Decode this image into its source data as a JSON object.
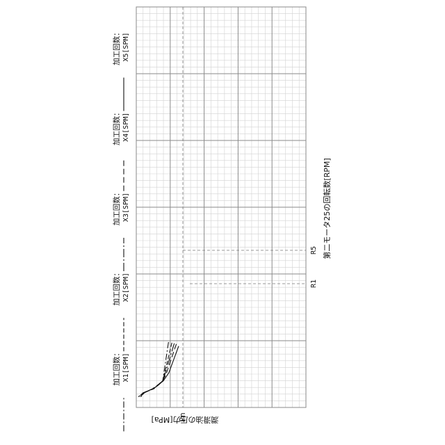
{
  "chart_data": {
    "type": "line",
    "orientation": "rotated-90-clockwise",
    "x_axis_label": "潤滑油の圧力[MPa]",
    "x_tick_label": "Pn",
    "y_axis_label": "第二モータ25の回転数[RPM]",
    "y_ref_labels": [
      "R5",
      "R1"
    ],
    "grid": true,
    "legend": [
      {
        "label": "加工回数：X1[SPM]",
        "dash": "9 3 2 3"
      },
      {
        "label": "加工回数：X2[SPM]",
        "dash": "6 3"
      },
      {
        "label": "加工回数：X3[SPM]",
        "dash": "12 3 2 3"
      },
      {
        "label": "加工回数：X4[SPM]",
        "dash": "8 4"
      },
      {
        "label": "加工回数：X5[SPM]",
        "dash": ""
      }
    ],
    "series": [
      {
        "values": [
          [
            0.98,
            0.95
          ],
          [
            0.47,
            0.8
          ],
          [
            0.4,
            0.78
          ],
          [
            0.34,
            0.66
          ],
          [
            0.28,
            0.5
          ],
          [
            0.22,
            0.22
          ],
          [
            0.16,
            0.1
          ]
        ]
      },
      {
        "values": [
          [
            0.97,
            1.05
          ],
          [
            0.48,
            0.82
          ],
          [
            0.4,
            0.78
          ],
          [
            0.34,
            0.66
          ],
          [
            0.28,
            0.52
          ],
          [
            0.22,
            0.2
          ],
          [
            0.16,
            0.08
          ]
        ]
      },
      {
        "values": [
          [
            0.96,
            1.12
          ],
          [
            0.49,
            0.84
          ],
          [
            0.4,
            0.78
          ],
          [
            0.34,
            0.66
          ],
          [
            0.28,
            0.5
          ],
          [
            0.22,
            0.24
          ],
          [
            0.16,
            0.12
          ]
        ]
      },
      {
        "values": [
          [
            0.95,
            1.18
          ],
          [
            0.5,
            0.88
          ],
          [
            0.4,
            0.78
          ],
          [
            0.34,
            0.64
          ],
          [
            0.28,
            0.48
          ],
          [
            0.22,
            0.22
          ],
          [
            0.16,
            0.06
          ]
        ]
      },
      {
        "values": [
          [
            0.92,
            1.25
          ],
          [
            0.52,
            0.96
          ],
          [
            0.4,
            0.8
          ],
          [
            0.34,
            0.66
          ],
          [
            0.28,
            0.5
          ],
          [
            0.22,
            0.2
          ],
          [
            0.16,
            0.14
          ]
        ]
      }
    ]
  }
}
